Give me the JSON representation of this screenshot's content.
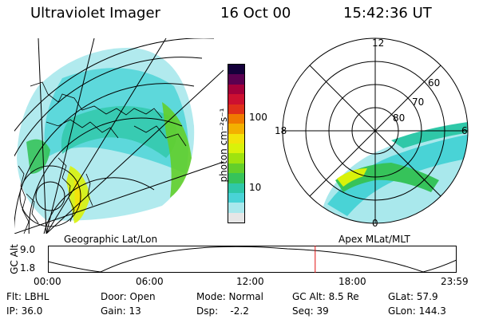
{
  "header": {
    "instrument": "Ultraviolet Imager",
    "date": "16 Oct 00",
    "time": "15:42:36 UT"
  },
  "left_panel": {
    "caption": "Geographic Lat/Lon"
  },
  "right_panel": {
    "caption": "Apex MLat/MLT",
    "mlt_labels": {
      "top": "12",
      "left": "18",
      "right": "6",
      "bottom": "0"
    },
    "lat_labels": [
      "60",
      "70",
      "80"
    ]
  },
  "colorbar": {
    "unit_label": "photon cm⁻²s⁻¹",
    "ticks": [
      "100",
      "10"
    ],
    "colors": [
      "#e6e6e6",
      "#a9e8ec",
      "#49d3d6",
      "#2fc8a8",
      "#36c35a",
      "#63cf2a",
      "#9fe30f",
      "#d9f20a",
      "#f2e40a",
      "#f3b000",
      "#f07a00",
      "#e0301a",
      "#cd1030",
      "#a4003a",
      "#5a0050",
      "#14003a"
    ]
  },
  "timeline": {
    "ylabel": "GC Alt",
    "ymax_label": "9.0",
    "ymin_label": "1.8",
    "x_ticks": [
      "00:00",
      "06:00",
      "12:00",
      "18:00",
      "23:59"
    ],
    "current_fraction": 0.654
  },
  "info": {
    "r1": [
      "Flt: LBHL",
      "Door: Open",
      "Mode: Normal",
      "GC Alt: 8.5 Re",
      "GLat: 57.9"
    ],
    "r2": [
      "IP: 36.0",
      "Gain: 13",
      "Dsp:    -2.2",
      "Seq: 39",
      "GLon: 144.3"
    ]
  }
}
